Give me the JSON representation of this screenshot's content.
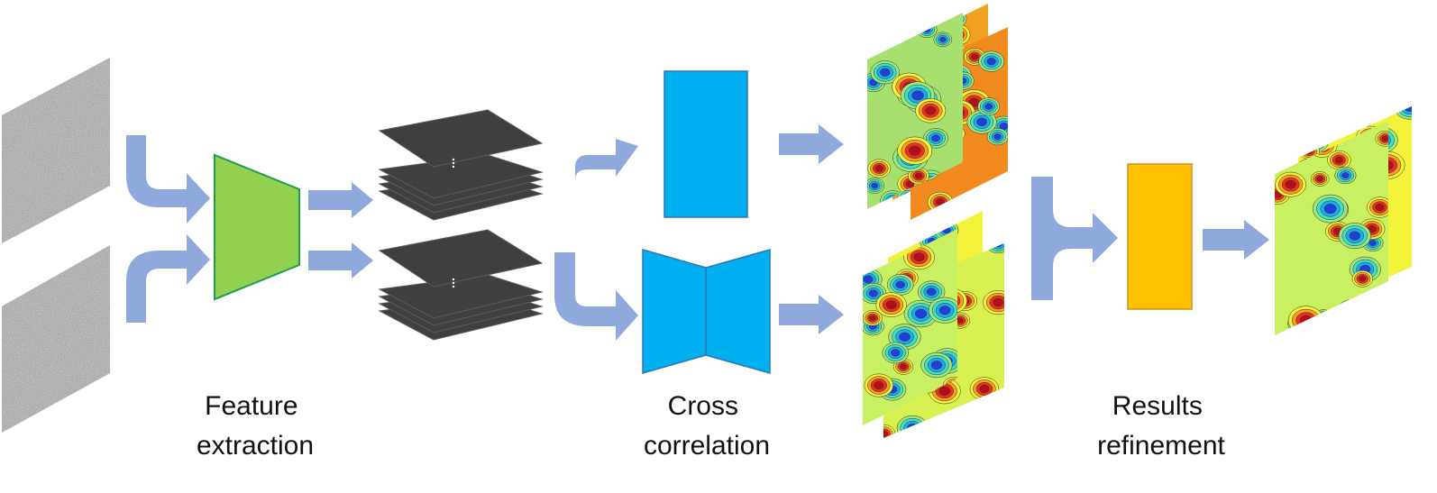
{
  "labels": {
    "feature": [
      "Feature",
      "extraction"
    ],
    "cross": [
      "Cross",
      "correlation"
    ],
    "refine": [
      "Results",
      "refinement"
    ]
  },
  "colors": {
    "arrow": "#8FA9DC",
    "encoder": "#92D050",
    "encoder_border": "#1E9B4A",
    "correlation": "#00B0F0",
    "correlation_border": "#2E75B6",
    "refinement": "#FFC000",
    "refinement_border": "#C8961E",
    "feature_stack": "#3F3F3F",
    "input_image": "#9A9A9A"
  },
  "icons": {
    "input_images": "grayscale-speckle-image-icon",
    "feature_maps": "feature-map-stack-icon",
    "flow_fields": "contour-heatmap-icon"
  }
}
